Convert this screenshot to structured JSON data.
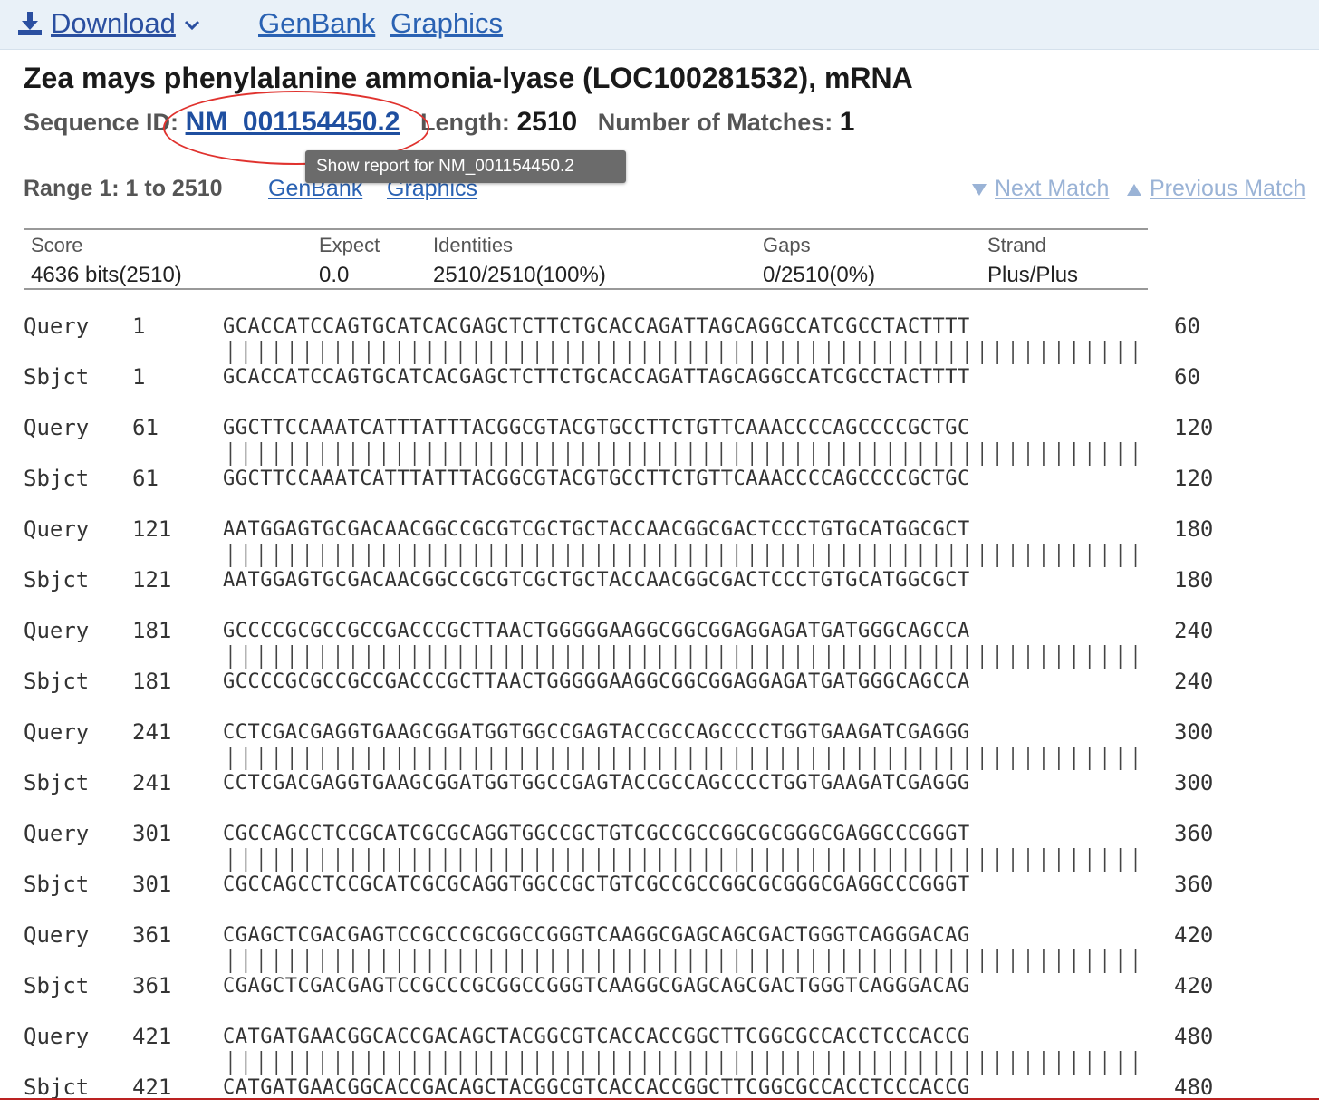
{
  "toolbar": {
    "download_label": "Download",
    "genbank_label": "GenBank",
    "graphics_label": "Graphics"
  },
  "title": "Zea mays phenylalanine ammonia-lyase (LOC100281532), mRNA",
  "seq_info": {
    "seq_id_label": "Sequence ID:",
    "seq_id": "NM_001154450.2",
    "length_label": "Length:",
    "length": "2510",
    "matches_label": "Number of Matches:",
    "matches": "1"
  },
  "tooltip": "Show report for NM_001154450.2",
  "range": {
    "label": "Range 1: 1 to 2510",
    "genbank_label": "GenBank",
    "graphics_label": "Graphics",
    "next_label": "Next Match",
    "prev_label": "Previous Match"
  },
  "stats": {
    "score_label": "Score",
    "score": "4636 bits(2510)",
    "expect_label": "Expect",
    "expect": "0.0",
    "identities_label": "Identities",
    "identities": "2510/2510(100%)",
    "gaps_label": "Gaps",
    "gaps": "0/2510(0%)",
    "strand_label": "Strand",
    "strand": "Plus/Plus"
  },
  "alignment": {
    "query_label": "Query",
    "sbjct_label": "Sbjct",
    "rows": [
      {
        "start": "1",
        "end": "60",
        "seq": "GCACCATCCAGTGCATCACGAGCTCTTCTGCACCAGATTAGCAGGCCATCGCCTACTTTT"
      },
      {
        "start": "61",
        "end": "120",
        "seq": "GGCTTCCAAATCATTTATTTACGGCGTACGTGCCTTCTGTTCAAACCCCAGCCCCGCTGC"
      },
      {
        "start": "121",
        "end": "180",
        "seq": "AATGGAGTGCGACAACGGCCGCGTCGCTGCTACCAACGGCGACTCCCTGTGCATGGCGCT"
      },
      {
        "start": "181",
        "end": "240",
        "seq": "GCCCCGCGCCGCCGACCCGCTTAACTGGGGGAAGGCGGCGGAGGAGATGATGGGCAGCCA"
      },
      {
        "start": "241",
        "end": "300",
        "seq": "CCTCGACGAGGTGAAGCGGATGGTGGCCGAGTACCGCCAGCCCCTGGTGAAGATCGAGGG"
      },
      {
        "start": "301",
        "end": "360",
        "seq": "CGCCAGCCTCCGCATCGCGCAGGTGGCCGCTGTCGCCGCCGGCGCGGGCGAGGCCCGGGT"
      },
      {
        "start": "361",
        "end": "420",
        "seq": "CGAGCTCGACGAGTCCGCCCGCGGCCGGGTCAAGGCGAGCAGCGACTGGGTCAGGGACAG"
      },
      {
        "start": "421",
        "end": "480",
        "seq": "CATGATGAACGGCACCGACAGCTACGGCGTCACCACCGGCTTCGGCGCCACCTCCCACCG"
      }
    ]
  }
}
